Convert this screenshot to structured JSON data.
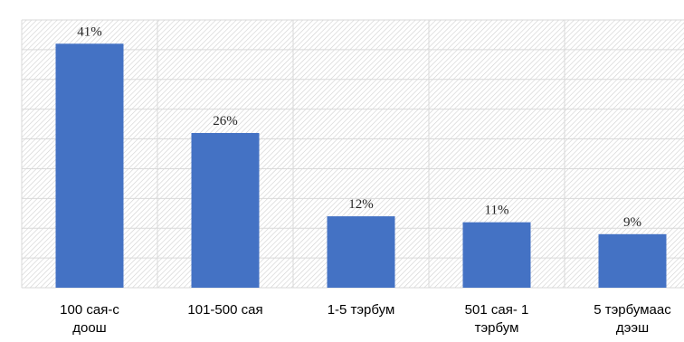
{
  "chart_data": {
    "type": "bar",
    "categories": [
      [
        "100 сая-с",
        "доош"
      ],
      [
        "101-500 сая"
      ],
      [
        "1-5 тэрбум"
      ],
      [
        "501 сая- 1",
        "тэрбум"
      ],
      [
        "5 тэрбумаас",
        "дээш"
      ]
    ],
    "values": [
      41,
      26,
      12,
      11,
      9
    ],
    "value_labels": [
      "41%",
      "26%",
      "12%",
      "11%",
      "9%"
    ],
    "unit": "%",
    "ylim": [
      0,
      45
    ],
    "grid": true,
    "bar_color": "#4472c4",
    "grid_color": "#d9d9d9",
    "hatch_color": "#d0d0d0",
    "title": "",
    "xlabel": "",
    "ylabel": ""
  }
}
